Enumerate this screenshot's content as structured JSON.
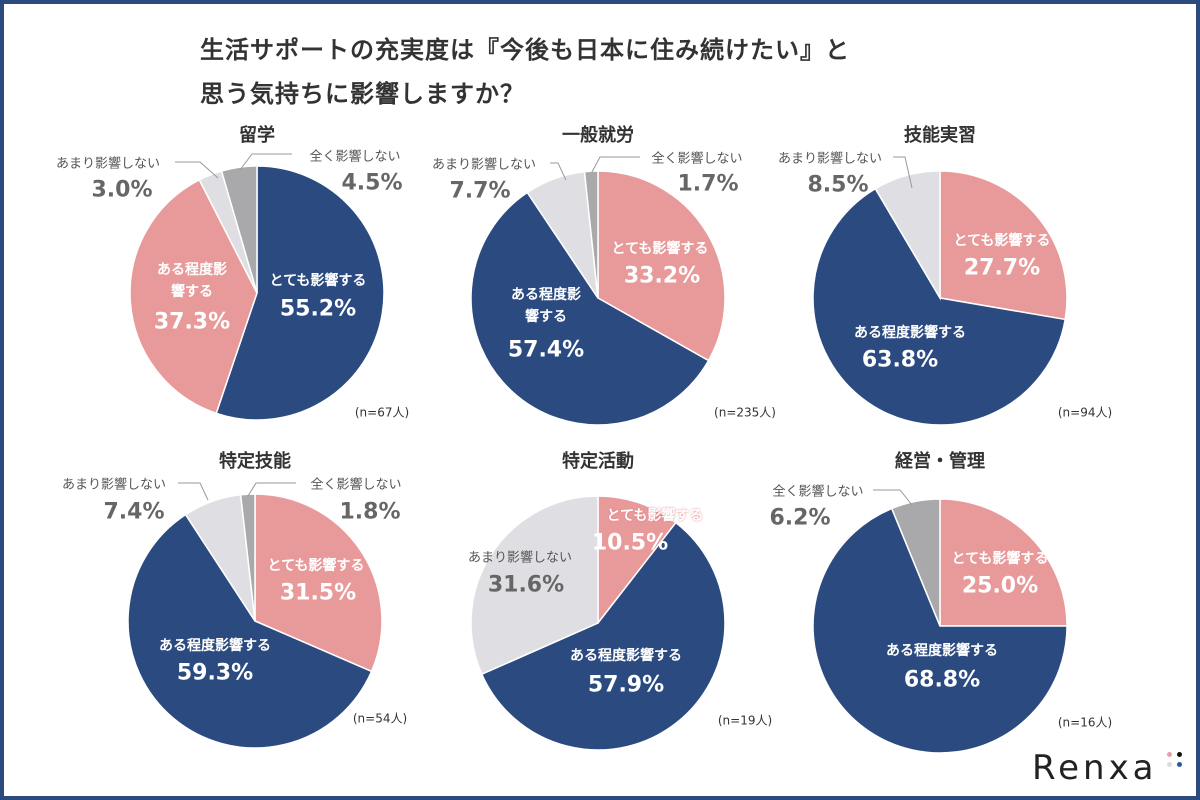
{
  "title_lines": [
    "生活サポートの充実度は『今後も日本に住み続けたい』と",
    "思う気持ちに影響しますか？"
  ],
  "colors": {
    "navy": "#2b4a80",
    "pink": "#e89a9b",
    "light_gray": "#dfdee2",
    "gray": "#a9a9ac"
  },
  "logo": "Renxa",
  "chart_data": [
    {
      "type": "pie",
      "title": "留学",
      "n": "(n=67人)",
      "slices": [
        {
          "label": "とても影響する",
          "value": 55.2,
          "pct": "55.2%",
          "color": "#2b4a80"
        },
        {
          "label": "ある程度影響する",
          "value": 37.3,
          "pct": "37.3%",
          "color": "#e89a9b"
        },
        {
          "label": "あまり影響しない",
          "value": 3.0,
          "pct": "3.0%",
          "color": "#dfdee2"
        },
        {
          "label": "全く影響しない",
          "value": 4.5,
          "pct": "4.5%",
          "color": "#a9a9ac"
        }
      ]
    },
    {
      "type": "pie",
      "title": "一般就労",
      "n": "(n=235人)",
      "slices": [
        {
          "label": "とても影響する",
          "value": 33.2,
          "pct": "33.2%",
          "color": "#e89a9b"
        },
        {
          "label": "ある程度影響する",
          "value": 57.4,
          "pct": "57.4%",
          "color": "#2b4a80"
        },
        {
          "label": "あまり影響しない",
          "value": 7.7,
          "pct": "7.7%",
          "color": "#dfdee2"
        },
        {
          "label": "全く影響しない",
          "value": 1.7,
          "pct": "1.7%",
          "color": "#a9a9ac"
        }
      ]
    },
    {
      "type": "pie",
      "title": "技能実習",
      "n": "(n=94人)",
      "slices": [
        {
          "label": "とても影響する",
          "value": 27.7,
          "pct": "27.7%",
          "color": "#e89a9b"
        },
        {
          "label": "ある程度影響する",
          "value": 63.8,
          "pct": "63.8%",
          "color": "#2b4a80"
        },
        {
          "label": "あまり影響しない",
          "value": 8.5,
          "pct": "8.5%",
          "color": "#dfdee2"
        }
      ]
    },
    {
      "type": "pie",
      "title": "特定技能",
      "n": "(n=54人)",
      "slices": [
        {
          "label": "とても影響する",
          "value": 31.5,
          "pct": "31.5%",
          "color": "#e89a9b"
        },
        {
          "label": "ある程度影響する",
          "value": 59.3,
          "pct": "59.3%",
          "color": "#2b4a80"
        },
        {
          "label": "あまり影響しない",
          "value": 7.4,
          "pct": "7.4%",
          "color": "#dfdee2"
        },
        {
          "label": "全く影響しない",
          "value": 1.8,
          "pct": "1.8%",
          "color": "#a9a9ac"
        }
      ]
    },
    {
      "type": "pie",
      "title": "特定活動",
      "n": "(n=19人)",
      "slices": [
        {
          "label": "とても影響する",
          "value": 10.5,
          "pct": "10.5%",
          "color": "#e89a9b"
        },
        {
          "label": "ある程度影響する",
          "value": 57.9,
          "pct": "57.9%",
          "color": "#2b4a80"
        },
        {
          "label": "あまり影響しない",
          "value": 31.6,
          "pct": "31.6%",
          "color": "#dfdee2"
        }
      ]
    },
    {
      "type": "pie",
      "title": "経営・管理",
      "n": "(n=16人)",
      "slices": [
        {
          "label": "とても影響する",
          "value": 25.0,
          "pct": "25.0%",
          "color": "#e89a9b"
        },
        {
          "label": "ある程度影響する",
          "value": 68.8,
          "pct": "68.8%",
          "color": "#2b4a80"
        },
        {
          "label": "全く影響しない",
          "value": 6.2,
          "pct": "6.2%",
          "color": "#a9a9ac"
        }
      ]
    }
  ]
}
